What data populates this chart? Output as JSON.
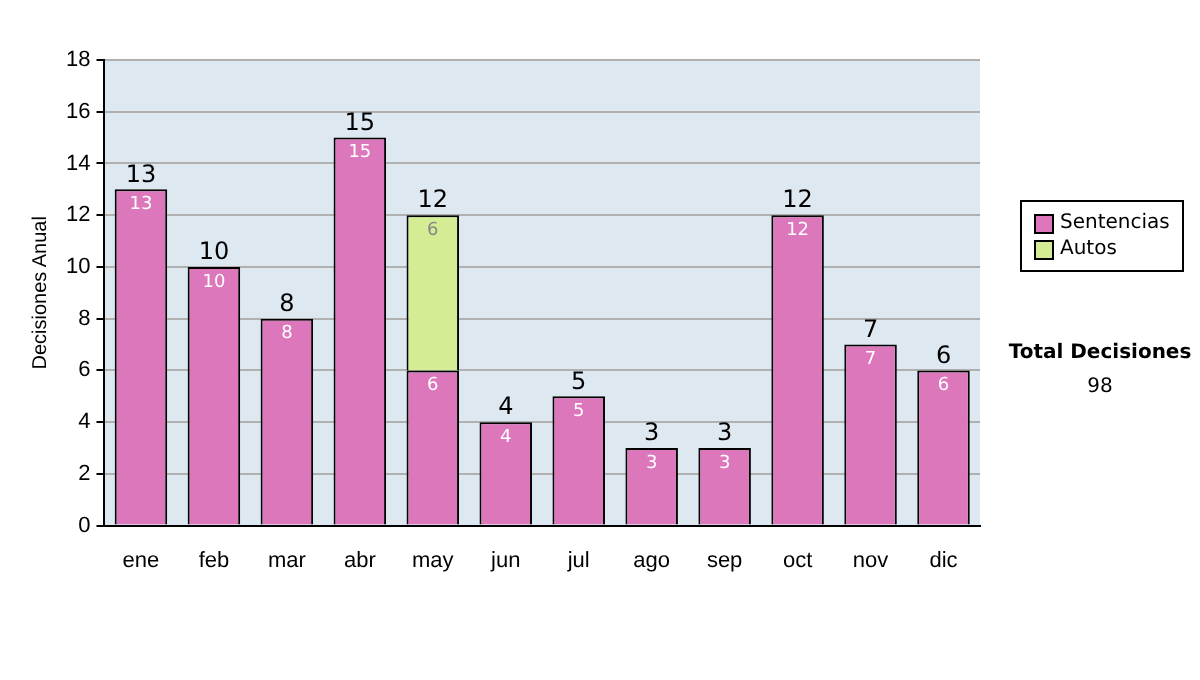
{
  "chart_data": {
    "type": "bar",
    "stacked": true,
    "ylabel": "Decisiones Anual",
    "categories": [
      "ene",
      "feb",
      "mar",
      "abr",
      "may",
      "jun",
      "jul",
      "ago",
      "sep",
      "oct",
      "nov",
      "dic"
    ],
    "series": [
      {
        "name": "Sentencias",
        "color": "#dd77bb",
        "values": [
          13,
          10,
          8,
          15,
          6,
          4,
          5,
          3,
          3,
          12,
          7,
          6
        ]
      },
      {
        "name": "Autos",
        "color": "#d4ec94",
        "values": [
          null,
          null,
          null,
          null,
          6,
          null,
          null,
          null,
          null,
          null,
          null,
          null
        ]
      }
    ],
    "totals": [
      "13",
      "10",
      "8",
      "15",
      "12",
      "4",
      "5",
      "3",
      "3",
      "12",
      "7",
      "6"
    ],
    "data_labels": true,
    "ylim": [
      0,
      18
    ],
    "yticks": [
      0,
      2,
      4,
      6,
      8,
      10,
      12,
      14,
      16,
      18
    ],
    "grid": "y",
    "legend": "right",
    "annotations": [
      "Total Decisiones",
      "98"
    ]
  }
}
